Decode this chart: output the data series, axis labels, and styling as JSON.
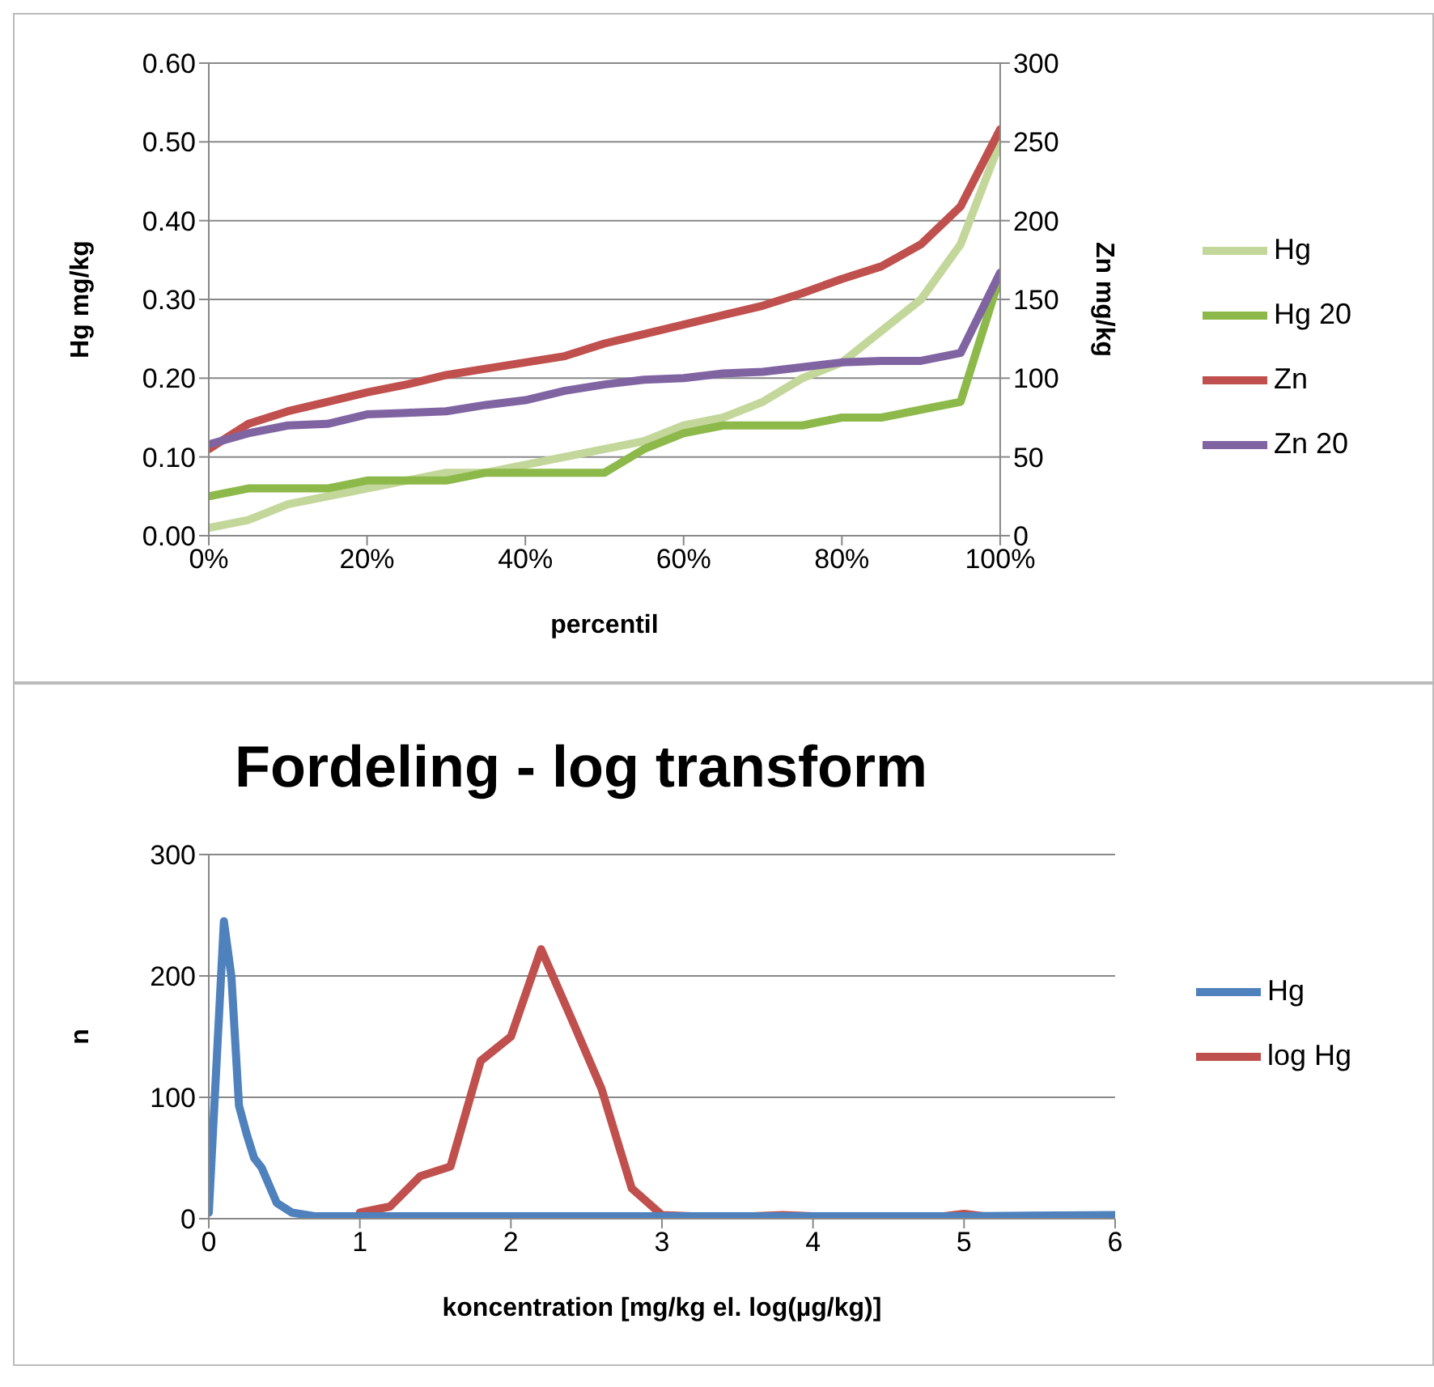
{
  "chart_data": [
    {
      "type": "line",
      "xlabel": "percentil",
      "ylabel": "Hg mg/kg",
      "y2label": "Zn mg/kg",
      "x": [
        0,
        5,
        10,
        15,
        20,
        25,
        30,
        35,
        40,
        45,
        50,
        55,
        60,
        65,
        70,
        75,
        80,
        85,
        90,
        95,
        100
      ],
      "series": [
        {
          "name": "Hg",
          "color": "#c4d79b",
          "values": [
            0.01,
            0.02,
            0.04,
            0.05,
            0.06,
            0.07,
            0.08,
            0.08,
            0.09,
            0.1,
            0.11,
            0.12,
            0.14,
            0.15,
            0.17,
            0.2,
            0.22,
            0.26,
            0.3,
            0.37,
            0.5
          ]
        },
        {
          "name": "Hg 20",
          "color": "#8db94a",
          "values": [
            0.05,
            0.06,
            0.06,
            0.06,
            0.07,
            0.07,
            0.07,
            0.08,
            0.08,
            0.08,
            0.08,
            0.11,
            0.13,
            0.14,
            0.14,
            0.14,
            0.15,
            0.15,
            0.16,
            0.17,
            0.33
          ]
        },
        {
          "name": "Zn",
          "color": "#c0504d",
          "axis": "y2",
          "values": [
            55,
            71,
            79,
            85,
            91,
            96,
            102,
            106,
            110,
            114,
            122,
            128,
            134,
            140,
            146,
            154,
            163,
            171,
            185,
            209,
            258
          ]
        },
        {
          "name": "Zn 20",
          "color": "#8064a2",
          "axis": "y2",
          "values": [
            58,
            65,
            70,
            71,
            77,
            78,
            79,
            83,
            86,
            92,
            96,
            99,
            100,
            103,
            104,
            107,
            110,
            111,
            111,
            116,
            167
          ]
        }
      ],
      "xlim": [
        0,
        100
      ],
      "xticks": [
        {
          "value": 0,
          "label": "0%"
        },
        {
          "value": 20,
          "label": "20%"
        },
        {
          "value": 40,
          "label": "40%"
        },
        {
          "value": 60,
          "label": "60%"
        },
        {
          "value": 80,
          "label": "80%"
        },
        {
          "value": 100,
          "label": "100%"
        }
      ],
      "ylim": [
        0,
        0.6
      ],
      "yticks": [
        {
          "value": 0,
          "label": "0.00"
        },
        {
          "value": 0.1,
          "label": "0.10"
        },
        {
          "value": 0.2,
          "label": "0.20"
        },
        {
          "value": 0.3,
          "label": "0.30"
        },
        {
          "value": 0.4,
          "label": "0.40"
        },
        {
          "value": 0.5,
          "label": "0.50"
        },
        {
          "value": 0.6,
          "label": "0.60"
        }
      ],
      "y2lim": [
        0,
        300
      ],
      "y2ticks": [
        0,
        50,
        100,
        150,
        200,
        250,
        300
      ],
      "grid": "y",
      "legend": "right",
      "marker": "none"
    },
    {
      "type": "line",
      "title": "Fordeling - log transform",
      "xlabel": "koncentration [mg/kg el. log(µg/kg)]",
      "ylabel": "n",
      "series": [
        {
          "name": "log Hg",
          "color": "#c0504d",
          "x": [
            1.0,
            1.2,
            1.4,
            1.6,
            1.8,
            2.0,
            2.2,
            2.4,
            2.6,
            2.8,
            3.0,
            3.4,
            3.8,
            4.2,
            4.8,
            5.0,
            5.2,
            6.0
          ],
          "values": [
            5,
            10,
            35,
            43,
            130,
            150,
            222,
            165,
            107,
            25,
            3,
            1,
            3,
            1,
            1,
            4,
            1,
            1
          ]
        },
        {
          "name": "Hg",
          "color": "#4f81bd",
          "x": [
            0,
            0.1,
            0.15,
            0.2,
            0.25,
            0.3,
            0.35,
            0.45,
            0.55,
            0.7,
            1.0,
            2.0,
            3.0,
            4.0,
            5.0,
            6.0
          ],
          "values": [
            5,
            245,
            199,
            93,
            70,
            50,
            42,
            13,
            5,
            2,
            2,
            2,
            2,
            2,
            2,
            3
          ]
        }
      ],
      "xlim": [
        0,
        6
      ],
      "xticks": [
        0,
        1,
        2,
        3,
        4,
        5,
        6
      ],
      "ylim": [
        0,
        300
      ],
      "yticks": [
        0,
        100,
        200,
        300
      ],
      "grid": "y",
      "legend": "right",
      "marker": "none"
    }
  ]
}
